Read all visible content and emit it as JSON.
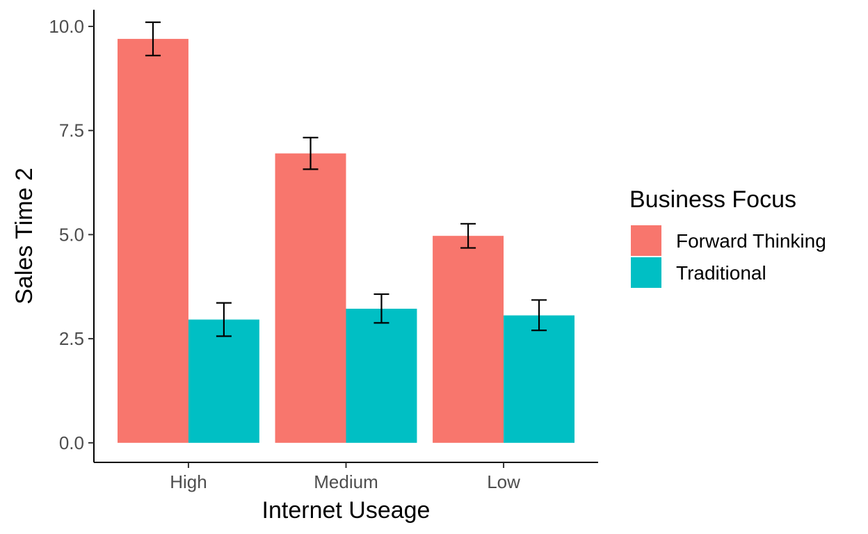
{
  "chart_data": {
    "type": "bar",
    "title": "",
    "xlabel": "Internet Useage",
    "ylabel": "Sales Time 2",
    "categories": [
      "High",
      "Medium",
      "Low"
    ],
    "series": [
      {
        "name": "Forward Thinking",
        "color": "#F8766D",
        "values": [
          9.7,
          6.95,
          4.97
        ],
        "err_low": [
          9.3,
          6.57,
          4.68
        ],
        "err_high": [
          10.1,
          7.33,
          5.26
        ]
      },
      {
        "name": "Traditional",
        "color": "#00BFC4",
        "values": [
          2.96,
          3.22,
          3.06
        ],
        "err_low": [
          2.56,
          2.88,
          2.7
        ],
        "err_high": [
          3.36,
          3.57,
          3.43
        ]
      }
    ],
    "ylim": [
      -0.47,
      10.4
    ],
    "yticks": [
      0.0,
      2.5,
      5.0,
      7.5,
      10.0
    ],
    "ytick_labels": [
      "0.0",
      "2.5",
      "5.0",
      "7.5",
      "10.0"
    ],
    "grid": false,
    "legend": {
      "title": "Business Focus",
      "position": "right"
    }
  }
}
